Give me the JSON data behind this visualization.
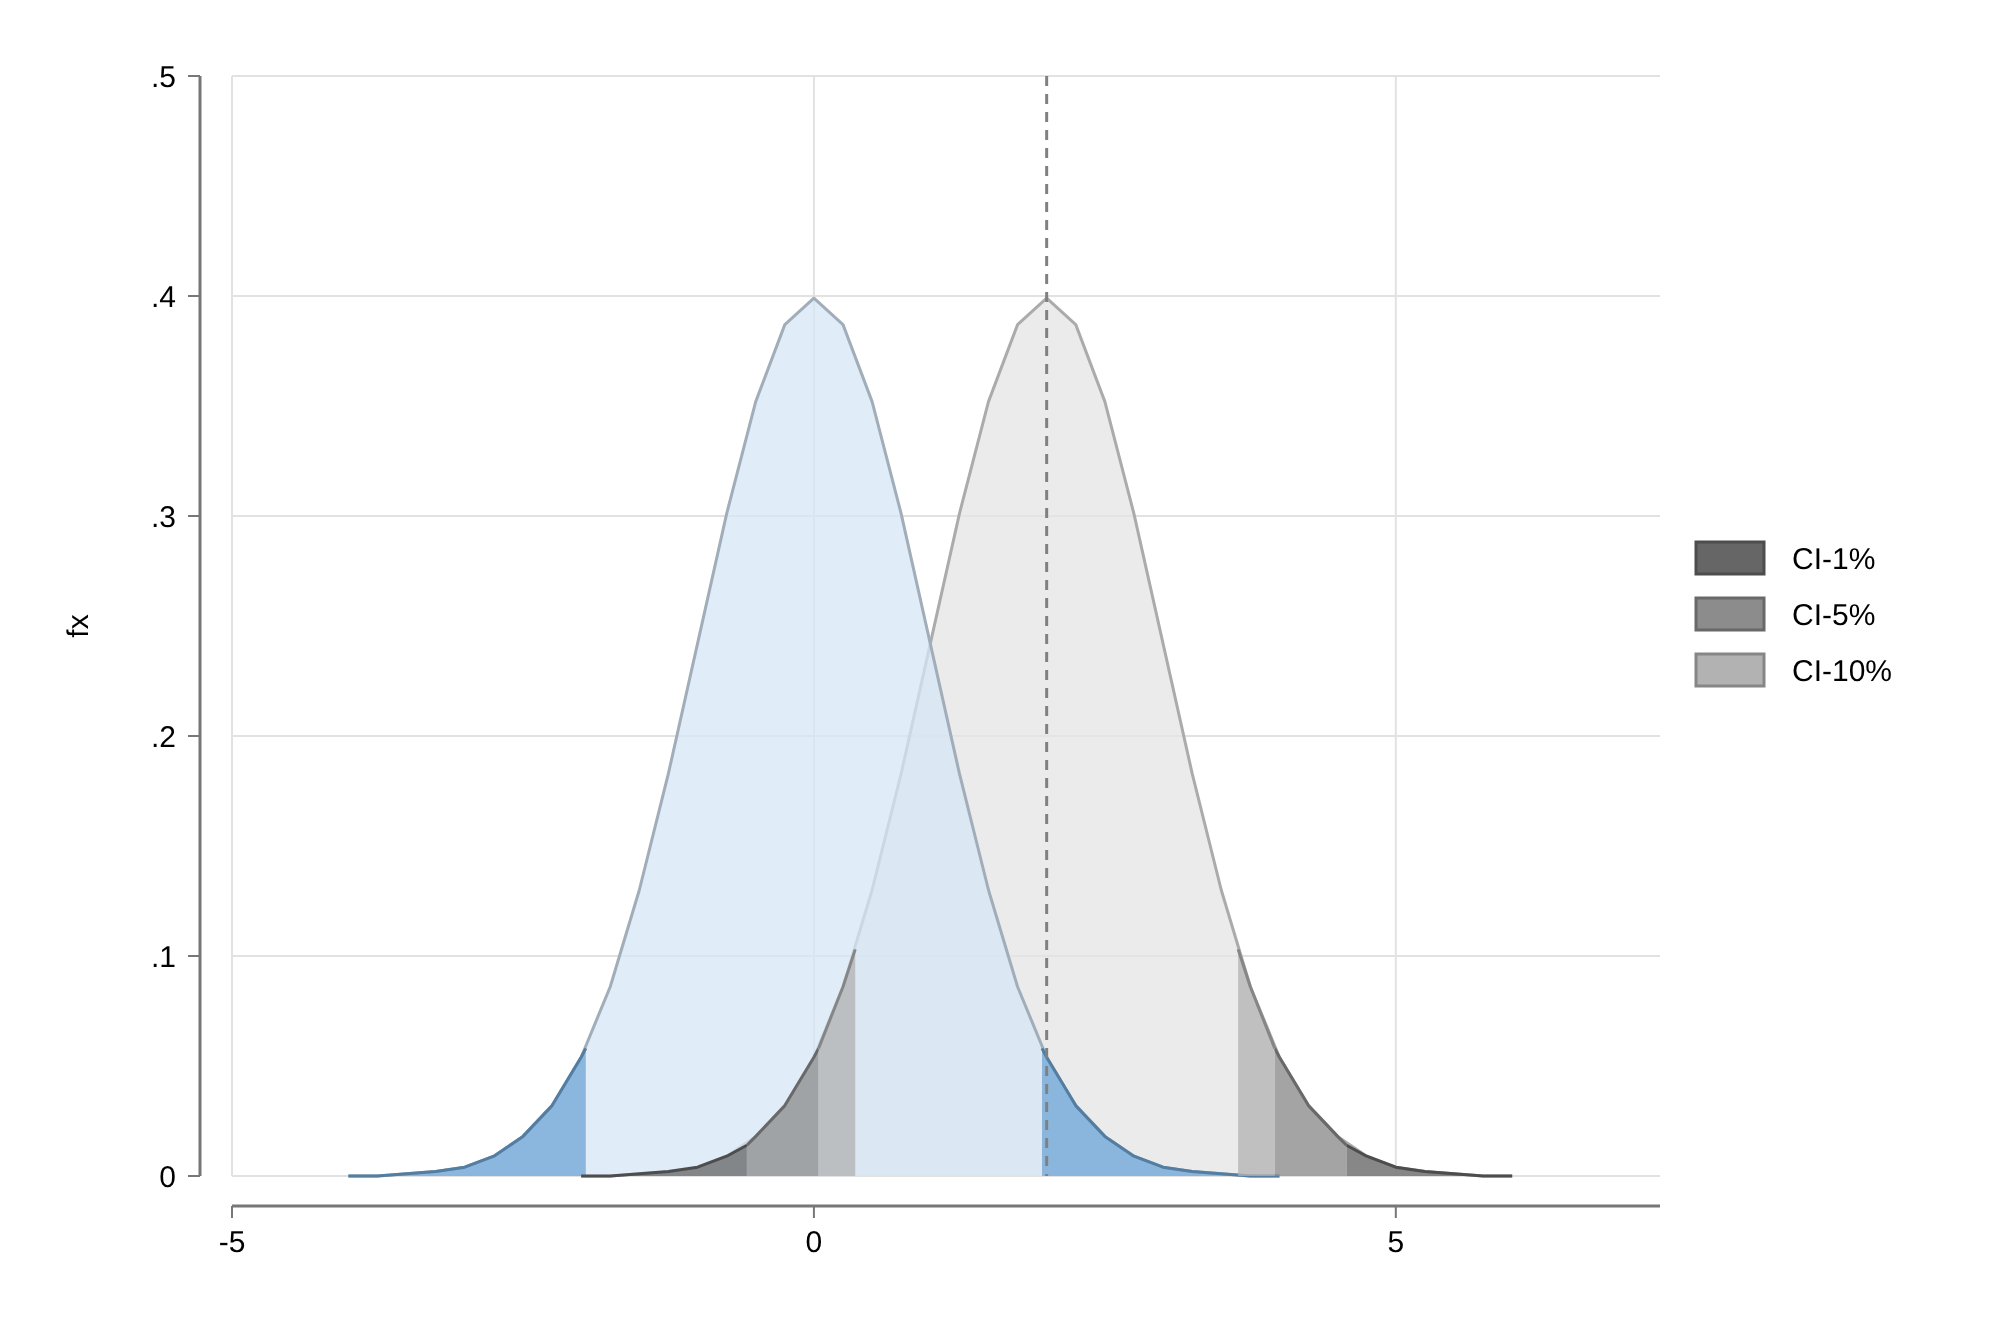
{
  "chart_data": {
    "type": "area",
    "ylabel": "fx",
    "xlim": [
      -5,
      7.27
    ],
    "ylim": [
      0,
      0.5
    ],
    "xticks": [
      -5,
      0,
      5
    ],
    "yticks": [
      0,
      {
        "value": 0.1,
        "label": ".1"
      },
      {
        "value": 0.2,
        "label": ".2"
      },
      {
        "value": 0.3,
        "label": ".3"
      },
      {
        "value": 0.4,
        "label": ".4"
      },
      {
        "value": 0.5,
        "label": ".5"
      }
    ],
    "grid": true,
    "legend": "right",
    "ref_lines": [
      {
        "axis": "x",
        "value": 2,
        "color": "#808080",
        "line_style": "dashed"
      }
    ],
    "series": [
      {
        "color": "#e4e4e4",
        "x": [
          -2,
          -1.75,
          -1.5,
          -1.25,
          -1,
          -0.75,
          -0.5,
          -0.25,
          0,
          0.25,
          0.5,
          0.75,
          1,
          1.25,
          1.5,
          1.75,
          2,
          2.25,
          2.5,
          2.75,
          3,
          3.25,
          3.5,
          3.75,
          4,
          4.25,
          4.5,
          4.75,
          5,
          5.25,
          5.5,
          5.75,
          6
        ],
        "values": [
          0,
          0,
          0.001,
          0.002,
          0.004,
          0.009,
          0.018,
          0.032,
          0.054,
          0.086,
          0.13,
          0.183,
          0.242,
          0.301,
          0.352,
          0.387,
          0.399,
          0.387,
          0.352,
          0.301,
          0.242,
          0.183,
          0.13,
          0.086,
          0.054,
          0.032,
          0.018,
          0.009,
          0.004,
          0.002,
          0.001,
          0,
          0
        ]
      },
      {
        "color": "#d6e6f5",
        "x": [
          -4,
          -3.75,
          -3.5,
          -3.25,
          -3,
          -2.75,
          -2.5,
          -2.25,
          -2,
          -1.75,
          -1.5,
          -1.25,
          -1,
          -0.75,
          -0.5,
          -0.25,
          0,
          0.25,
          0.5,
          0.75,
          1,
          1.25,
          1.5,
          1.75,
          2,
          2.25,
          2.5,
          2.75,
          3,
          3.25,
          3.5,
          3.75,
          4
        ],
        "values": [
          0,
          0,
          0.001,
          0.002,
          0.004,
          0.009,
          0.018,
          0.032,
          0.054,
          0.086,
          0.13,
          0.183,
          0.242,
          0.301,
          0.352,
          0.387,
          0.399,
          0.387,
          0.352,
          0.301,
          0.242,
          0.183,
          0.13,
          0.086,
          0.054,
          0.032,
          0.018,
          0.009,
          0.004,
          0.002,
          0.001,
          0,
          0
        ]
      },
      {
        "color": "#6fa6d6",
        "x": [
          -4,
          -3.75,
          -3.5,
          -3.25,
          -3,
          -2.75,
          -2.5,
          -2.25,
          -2,
          -1.96,
          0,
          1.96,
          2,
          2.25,
          2.5,
          2.75,
          3,
          3.25,
          3.5,
          3.75,
          4
        ],
        "values": [
          0,
          0,
          0.001,
          0.002,
          0.004,
          0.009,
          0.018,
          0.032,
          0.054,
          0.058,
          null,
          0.058,
          0.054,
          0.032,
          0.018,
          0.009,
          0.004,
          0.002,
          0.001,
          0,
          0
        ]
      },
      {
        "name": "CI-1%",
        "color": "#666666",
        "x": [
          -2,
          -1.75,
          -1.5,
          -1.25,
          -1,
          -0.75,
          -0.576,
          2,
          4.576,
          4.75,
          5,
          5.25,
          5.5,
          5.75,
          6
        ],
        "values": [
          0,
          0,
          0.001,
          0.002,
          0.004,
          0.009,
          0.014,
          null,
          0.014,
          0.009,
          0.004,
          0.002,
          0.001,
          0,
          0
        ]
      },
      {
        "name": "CI-5%",
        "color": "#8c8c8c",
        "x": [
          -0.576,
          -0.5,
          -0.25,
          0,
          0.04,
          2,
          3.96,
          4,
          4.25,
          4.5,
          4.576
        ],
        "values": [
          0.014,
          0.018,
          0.032,
          0.054,
          0.058,
          null,
          0.058,
          0.054,
          0.032,
          0.018,
          0.014
        ]
      },
      {
        "name": "CI-10%",
        "color": "#b2b2b2",
        "x": [
          0.04,
          0.25,
          0.355,
          2,
          3.645,
          3.75,
          3.96
        ],
        "values": [
          0.058,
          0.086,
          0.103,
          null,
          0.103,
          0.086,
          0.058
        ]
      }
    ]
  }
}
